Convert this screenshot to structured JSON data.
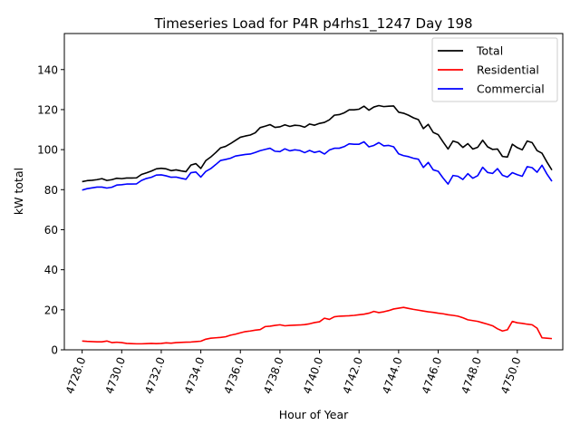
{
  "chart_data": {
    "type": "line",
    "title": "Timeseries Load for P4R p4rhs1_1247  Day 198",
    "xlabel": "Hour of Year",
    "ylabel": "kW total",
    "xlim": [
      4727.1,
      4752.3
    ],
    "ylim": [
      0,
      158
    ],
    "x_ticks": [
      4728,
      4730,
      4732,
      4734,
      4736,
      4738,
      4740,
      4742,
      4744,
      4746,
      4748,
      4750
    ],
    "x_tick_labels": [
      "4728.0",
      "4730.0",
      "4732.0",
      "4734.0",
      "4736.0",
      "4738.0",
      "4740.0",
      "4742.0",
      "4744.0",
      "4746.0",
      "4748.0",
      "4750.0"
    ],
    "y_ticks": [
      0,
      20,
      40,
      60,
      80,
      100,
      120,
      140
    ],
    "y_tick_labels": [
      "0",
      "20",
      "40",
      "60",
      "80",
      "100",
      "120",
      "140"
    ],
    "legend_position": "top-right",
    "x_start": 4728,
    "x_step": 0.25,
    "series": [
      {
        "name": "Total",
        "color": "#000000",
        "values": [
          84.0,
          84.5,
          84.7,
          85.0,
          85.5,
          84.6,
          85.0,
          85.7,
          85.5,
          85.8,
          85.8,
          85.9,
          87.6,
          88.4,
          89.3,
          90.4,
          90.7,
          90.4,
          89.5,
          89.9,
          89.4,
          89.0,
          92.3,
          93.0,
          90.6,
          94.5,
          96.3,
          98.5,
          100.9,
          101.6,
          103.0,
          104.6,
          106.2,
          106.8,
          107.3,
          108.4,
          111.0,
          111.7,
          112.5,
          111.1,
          111.4,
          112.4,
          111.6,
          112.2,
          112.0,
          111.2,
          112.8,
          112.2,
          113.1,
          113.6,
          114.9,
          117.2,
          117.5,
          118.4,
          119.9,
          119.9,
          120.2,
          121.7,
          119.7,
          121.3,
          122.0,
          121.5,
          121.7,
          121.8,
          118.7,
          118.2,
          117.2,
          115.9,
          115.0,
          110.5,
          112.6,
          108.6,
          107.5,
          103.8,
          100.3,
          104.3,
          103.5,
          101.1,
          103.0,
          100.3,
          101.2,
          104.7,
          101.4,
          100.1,
          100.3,
          96.6,
          96.3,
          102.7,
          101.0,
          99.9,
          104.3,
          103.5,
          99.5,
          98.2,
          93.8,
          89.8
        ]
      },
      {
        "name": "Residential",
        "color": "#ff0000",
        "values": [
          4.4,
          4.2,
          4.1,
          4.0,
          4.0,
          4.4,
          3.6,
          3.8,
          3.6,
          3.2,
          3.1,
          3.0,
          3.0,
          3.1,
          3.2,
          3.1,
          3.2,
          3.5,
          3.3,
          3.6,
          3.7,
          3.8,
          3.9,
          4.1,
          4.3,
          5.3,
          5.8,
          6.0,
          6.2,
          6.5,
          7.3,
          7.8,
          8.5,
          9.1,
          9.4,
          9.8,
          10.1,
          11.6,
          11.8,
          12.2,
          12.5,
          12.0,
          12.2,
          12.3,
          12.4,
          12.6,
          13.0,
          13.6,
          14.0,
          15.8,
          15.2,
          16.5,
          16.8,
          16.9,
          17.0,
          17.2,
          17.5,
          17.8,
          18.3,
          19.2,
          18.6,
          19.0,
          19.6,
          20.4,
          20.8,
          21.2,
          20.7,
          20.2,
          19.8,
          19.4,
          19.0,
          18.7,
          18.3,
          18.0,
          17.5,
          17.2,
          16.8,
          16.0,
          15.0,
          14.6,
          14.2,
          13.5,
          12.8,
          12.0,
          10.5,
          9.4,
          10.0,
          14.2,
          13.5,
          13.2,
          12.8,
          12.5,
          10.8,
          6.0,
          5.8,
          5.6
        ]
      },
      {
        "name": "Commercial",
        "color": "#0000ff",
        "values": [
          79.8,
          80.5,
          80.9,
          81.3,
          81.3,
          80.8,
          81.2,
          82.3,
          82.5,
          82.8,
          82.8,
          82.9,
          84.6,
          85.6,
          86.2,
          87.3,
          87.4,
          86.9,
          86.2,
          86.3,
          85.7,
          85.2,
          88.5,
          88.8,
          86.3,
          89.1,
          90.5,
          92.5,
          94.6,
          95.1,
          95.7,
          96.8,
          97.2,
          97.6,
          97.8,
          98.6,
          99.5,
          100.1,
          100.7,
          99.2,
          99.0,
          100.4,
          99.4,
          99.9,
          99.6,
          98.5,
          99.6,
          98.6,
          99.2,
          97.8,
          99.8,
          100.7,
          100.7,
          101.5,
          102.9,
          102.7,
          102.7,
          103.9,
          101.4,
          102.1,
          103.5,
          101.9,
          102.1,
          101.4,
          97.9,
          97.0,
          96.5,
          95.7,
          95.2,
          91.1,
          93.6,
          89.9,
          89.2,
          85.8,
          82.8,
          87.1,
          86.7,
          85.1,
          88.0,
          85.7,
          87.0,
          91.2,
          88.6,
          88.1,
          90.5,
          87.2,
          86.3,
          88.5,
          87.5,
          86.7,
          91.5,
          91.0,
          88.7,
          92.2,
          87.8,
          84.2
        ]
      }
    ]
  }
}
